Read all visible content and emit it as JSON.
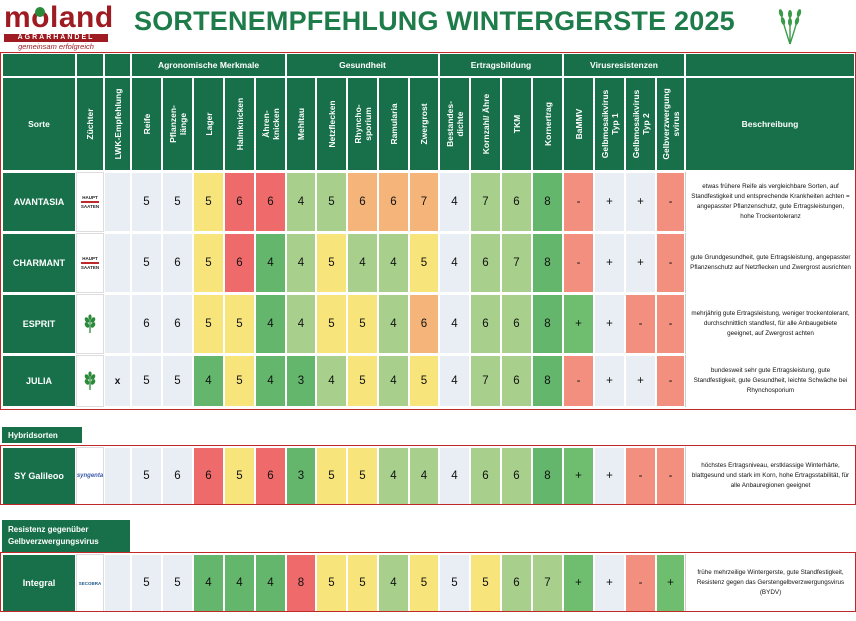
{
  "header": {
    "logo_word": "moland",
    "logo_bar": "AGRARHANDEL",
    "logo_tagline": "gemeinsam erfolgreich",
    "title": "SORTENEMPFEHLUNG WINTERGERSTE 2025"
  },
  "groups": {
    "agronomisch": "Agronomische Merkmale",
    "gesundheit": "Gesundheit",
    "ertrag": "Ertragsbildung",
    "virus": "Virusresistenzen"
  },
  "columns": {
    "sorte": "Sorte",
    "zuechter": "Züchter",
    "lwk": "LWK-Empfehlung",
    "reife": "Reife",
    "pflanzenlaenge": "Pflanzen-\nlänge",
    "lager": "Lager",
    "halmknicken": "Halmknicken",
    "aehrenknicken": "Ähren-\nknicken",
    "mehltau": "Mehltau",
    "netzflecken": "Netzflecken",
    "rhynchosporium": "Rhyncho-\nsporium",
    "ramularia": "Ramularia",
    "zwergrost": "Zwergrost",
    "bestandesdichte": "Bestandes-\ndichte",
    "kornzahl": "Kornzahl/ Ähre",
    "tkm": "TKM",
    "kornertrag": "Kornertrag",
    "bammv": "BaMMV",
    "gmv1": "Gelbmosaikvirus\nTyp 1",
    "gmv2": "Gelbmosaikvirus\nTyp 2",
    "gvv": "Gelbverzwergung\nsvirus",
    "beschreibung": "Beschreibung"
  },
  "sections": {
    "hybrid": "Hybridsorten",
    "resistenz": "Resistenz gegenüber\nGelbverzwergungsvirus"
  },
  "breeder_logos": {
    "hauptsaaten_line1": "HAUPT",
    "hauptsaaten_line2": "SAATEN",
    "syngenta": "syngenta",
    "secobra": "SECOBRA"
  },
  "colors": {
    "brand_green": "#17704a",
    "brand_red": "#9e1b22",
    "rating_good": "#63b66b",
    "rating_fair": "#a8d08c",
    "rating_mid": "#f7e47a",
    "rating_weak": "#f5b57a",
    "rating_bad": "#ef6b6b"
  },
  "rows": [
    {
      "sorte": "AVANTASIA",
      "lwk": "",
      "values": [
        "5",
        "5",
        "5",
        "6",
        "6",
        "4",
        "5",
        "6",
        "6",
        "7",
        "4",
        "7",
        "6",
        "8",
        "-",
        "+",
        "+",
        "-"
      ],
      "beschreibung": "etwas frühere Reife als vergleichbare Sorten, auf Standfestigkeit und entsprechende Krankheiten achten = angepasster Pflanzenschutz, gute Ertragsleistungen, hohe Trockentoleranz"
    },
    {
      "sorte": "CHARMANT",
      "lwk": "",
      "values": [
        "5",
        "6",
        "5",
        "6",
        "4",
        "4",
        "5",
        "4",
        "4",
        "5",
        "4",
        "6",
        "7",
        "8",
        "-",
        "+",
        "+",
        "-"
      ],
      "beschreibung": "gute Grundgesundheit, gute Ertragsleistung, angepasster Pflanzenschutz auf Netzflecken und Zwergrost ausrichten"
    },
    {
      "sorte": "ESPRIT",
      "lwk": "",
      "values": [
        "6",
        "6",
        "5",
        "5",
        "4",
        "4",
        "5",
        "5",
        "4",
        "6",
        "4",
        "6",
        "6",
        "8",
        "+",
        "+",
        "-",
        "-"
      ],
      "beschreibung": "mehrjährig gute Ertragsleistung, weniger trockentolerant, durchschnittlich standfest, für alle Anbaugebiete geeignet, auf Zwergrost achten"
    },
    {
      "sorte": "JULIA",
      "lwk": "x",
      "values": [
        "5",
        "5",
        "4",
        "5",
        "4",
        "3",
        "4",
        "5",
        "4",
        "5",
        "4",
        "7",
        "6",
        "8",
        "-",
        "+",
        "+",
        "-"
      ],
      "beschreibung": "bundesweit sehr gute Ertragsleistung, gute Standfestigkeit, gute Gesundheit, leichte Schwäche bei Rhynchosporium"
    },
    {
      "sorte": "SY Galileoo",
      "lwk": "",
      "values": [
        "5",
        "6",
        "6",
        "5",
        "6",
        "3",
        "5",
        "5",
        "4",
        "4",
        "4",
        "6",
        "6",
        "8",
        "+",
        "+",
        "-",
        "-"
      ],
      "beschreibung": "höchstes Ertragsniveau, erstklassige Winterhärte, blattgesund und stark im Korn, hohe Ertragsstabilität, für alle Anbauregionen geeignet"
    },
    {
      "sorte": "Integral",
      "lwk": "",
      "values": [
        "5",
        "5",
        "4",
        "4",
        "4",
        "8",
        "5",
        "5",
        "4",
        "5",
        "5",
        "5",
        "6",
        "7",
        "+",
        "+",
        "-",
        "+"
      ],
      "beschreibung": "frühe mehrzeilige Wintergerste, gute Standfestigkeit, Resistenz gegen das Gerstengelbverzwergungsvirus (BYDV)"
    }
  ]
}
